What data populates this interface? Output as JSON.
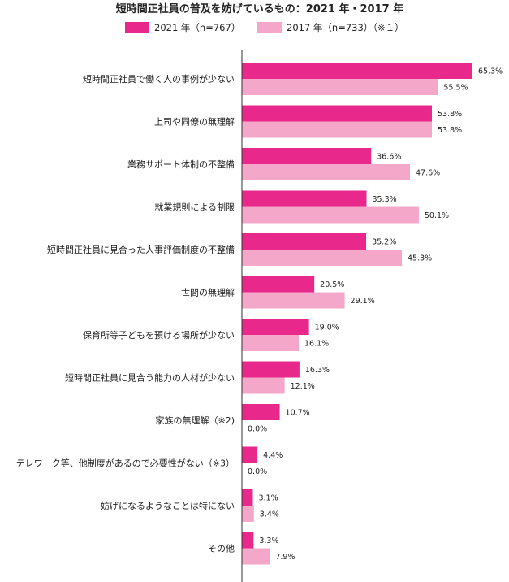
{
  "chart_data": {
    "type": "bar",
    "orientation": "horizontal",
    "title": "短時間正社員の普及を妨げているもの：2021 年・2017 年",
    "xlim": [
      0,
      70
    ],
    "grid": false,
    "legend_position": "top",
    "categories": [
      "短時間正社員で働く人の事例が少ない",
      "上司や同僚の無理解",
      "業務サポート体制の不整備",
      "就業規則による制限",
      "短時間正社員に見合った人事評価制度の不整備",
      "世間の無理解",
      "保育所等子どもを預ける場所が少ない",
      "短時間正社員に見合う能力の人材が少ない",
      "家族の無理解（※2)",
      "テレワーク等、他制度があるので必要性がない（※3）",
      "妨げになるようなことは特にない",
      "その他"
    ],
    "series": [
      {
        "name": "2021 年（n=767）",
        "color": "#e8288a",
        "values": [
          65.3,
          53.8,
          36.6,
          35.3,
          35.2,
          20.5,
          19.0,
          16.3,
          10.7,
          4.4,
          3.1,
          3.3
        ],
        "labels": [
          "65.3%",
          "53.8%",
          "36.6%",
          "35.3%",
          "35.2%",
          "20.5%",
          "19.0%",
          "16.3%",
          "10.7%",
          "4.4%",
          "3.1%",
          "3.3%"
        ]
      },
      {
        "name": "2017 年（n=733）（※１）",
        "color": "#f4a7c8",
        "values": [
          55.5,
          53.8,
          47.6,
          50.1,
          45.3,
          29.1,
          16.1,
          12.1,
          0.0,
          0.0,
          3.4,
          7.9
        ],
        "labels": [
          "55.5%",
          "53.8%",
          "47.6%",
          "50.1%",
          "45.3%",
          "29.1%",
          "16.1%",
          "12.1%",
          "0.0%",
          "0.0%",
          "3.4%",
          "7.9%"
        ]
      }
    ]
  }
}
